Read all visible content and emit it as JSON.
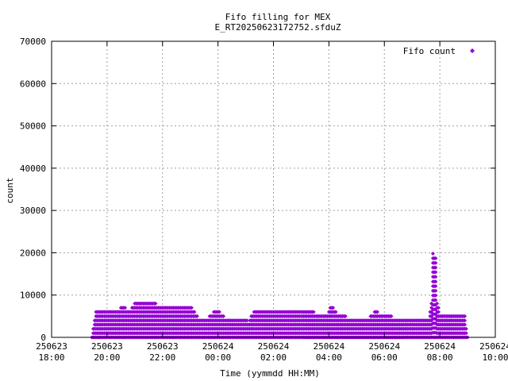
{
  "chart_data": {
    "type": "scatter",
    "title_lines": [
      "Fifo filling for MEX",
      "E_RT20250623172752.sfduZ"
    ],
    "xlabel": "Time (yymmdd HH:MM)",
    "ylabel": "count",
    "grid": true,
    "legend_position": "top-right",
    "series_color": "#9400d3",
    "y_ticks": [
      0,
      10000,
      20000,
      30000,
      40000,
      50000,
      60000,
      70000
    ],
    "ylim": [
      0,
      70000
    ],
    "xlim_hours": [
      18,
      34
    ],
    "x_ticks": [
      {
        "date": "250623",
        "time": "18:00"
      },
      {
        "date": "250623",
        "time": "20:00"
      },
      {
        "date": "250623",
        "time": "22:00"
      },
      {
        "date": "250624",
        "time": "00:00"
      },
      {
        "date": "250624",
        "time": "02:00"
      },
      {
        "date": "250624",
        "time": "04:00"
      },
      {
        "date": "250624",
        "time": "06:00"
      },
      {
        "date": "250624",
        "time": "08:00"
      },
      {
        "date": "250624",
        "time": "10:00"
      }
    ],
    "series": [
      {
        "name": "Fifo count",
        "envelope": [
          [
            19.45,
            500
          ],
          [
            19.6,
            6000
          ],
          [
            20.0,
            6000
          ],
          [
            20.3,
            6000
          ],
          [
            20.6,
            7500
          ],
          [
            20.8,
            6500
          ],
          [
            21.0,
            8000
          ],
          [
            21.3,
            9000
          ],
          [
            21.5,
            8500
          ],
          [
            21.8,
            8000
          ],
          [
            22.2,
            7800
          ],
          [
            22.6,
            7800
          ],
          [
            23.0,
            7800
          ],
          [
            23.1,
            7000
          ],
          [
            23.3,
            5000
          ],
          [
            23.6,
            4500
          ],
          [
            23.9,
            6500
          ],
          [
            24.1,
            6000
          ],
          [
            24.3,
            4500
          ],
          [
            24.6,
            4000
          ],
          [
            24.9,
            4800
          ],
          [
            25.1,
            3800
          ],
          [
            25.3,
            6500
          ],
          [
            25.7,
            6500
          ],
          [
            26.0,
            6500
          ],
          [
            26.5,
            6500
          ],
          [
            27.0,
            6800
          ],
          [
            27.3,
            6800
          ],
          [
            27.5,
            6000
          ],
          [
            27.8,
            5500
          ],
          [
            28.0,
            6000
          ],
          [
            28.1,
            8000
          ],
          [
            28.3,
            6000
          ],
          [
            28.5,
            5500
          ],
          [
            28.8,
            4500
          ],
          [
            29.2,
            4300
          ],
          [
            29.5,
            5000
          ],
          [
            29.7,
            6500
          ],
          [
            29.9,
            5500
          ],
          [
            30.2,
            5500
          ],
          [
            30.4,
            4000
          ],
          [
            30.8,
            4000
          ],
          [
            31.2,
            4000
          ],
          [
            31.4,
            4000
          ],
          [
            31.6,
            4200
          ],
          [
            31.7,
            8000
          ],
          [
            31.75,
            20000
          ],
          [
            31.85,
            19500
          ],
          [
            31.9,
            9000
          ],
          [
            32.0,
            5500
          ],
          [
            32.3,
            5200
          ],
          [
            32.6,
            5200
          ],
          [
            32.9,
            5200
          ],
          [
            33.0,
            200
          ]
        ]
      }
    ]
  }
}
